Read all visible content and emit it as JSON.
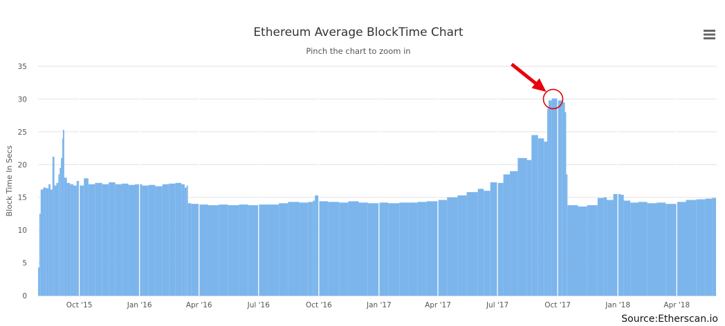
{
  "chart_data": {
    "type": "bar",
    "title": "Ethereum Average BlockTime Chart",
    "subtitle": "Pinch the chart to zoom in",
    "ylabel": "Block Time In Secs",
    "xlabel": "",
    "ylim": [
      0,
      35
    ],
    "yticks": [
      0,
      5,
      10,
      15,
      20,
      25,
      30,
      35
    ],
    "xlim": [
      "2015-07-30",
      "2018-06-01"
    ],
    "xticks": [
      {
        "date": "2015-10-01",
        "label": "Oct '15"
      },
      {
        "date": "2016-01-01",
        "label": "Jan '16"
      },
      {
        "date": "2016-04-01",
        "label": "Apr '16"
      },
      {
        "date": "2016-07-01",
        "label": "Jul '16"
      },
      {
        "date": "2016-10-01",
        "label": "Oct '16"
      },
      {
        "date": "2017-01-01",
        "label": "Jan '17"
      },
      {
        "date": "2017-04-01",
        "label": "Apr '17"
      },
      {
        "date": "2017-07-01",
        "label": "Jul '17"
      },
      {
        "date": "2017-10-01",
        "label": "Oct '17"
      },
      {
        "date": "2018-01-01",
        "label": "Jan '18"
      },
      {
        "date": "2018-04-01",
        "label": "Apr '18"
      }
    ],
    "grid": true,
    "legend": "none",
    "bar_color": "#7cb5ec",
    "series": [
      {
        "values": [
          [
            "2015-07-30",
            4.3
          ],
          [
            "2015-08-01",
            12.5
          ],
          [
            "2015-08-03",
            16.2
          ],
          [
            "2015-08-07",
            16.5
          ],
          [
            "2015-08-11",
            16.4
          ],
          [
            "2015-08-15",
            17.0
          ],
          [
            "2015-08-18",
            16.2
          ],
          [
            "2015-08-21",
            21.2
          ],
          [
            "2015-08-24",
            16.8
          ],
          [
            "2015-08-27",
            17.2
          ],
          [
            "2015-08-30",
            18.5
          ],
          [
            "2015-09-01",
            19.5
          ],
          [
            "2015-09-03",
            21.0
          ],
          [
            "2015-09-05",
            24.0
          ],
          [
            "2015-09-06",
            25.3
          ],
          [
            "2015-09-08",
            18.0
          ],
          [
            "2015-09-12",
            17.2
          ],
          [
            "2015-09-17",
            17.0
          ],
          [
            "2015-09-22",
            16.8
          ],
          [
            "2015-09-27",
            17.5
          ],
          [
            "2015-10-02",
            16.8
          ],
          [
            "2015-10-08",
            17.9
          ],
          [
            "2015-10-15",
            17.0
          ],
          [
            "2015-10-25",
            17.2
          ],
          [
            "2015-11-05",
            17.0
          ],
          [
            "2015-11-15",
            17.3
          ],
          [
            "2015-11-25",
            17.0
          ],
          [
            "2015-12-05",
            17.1
          ],
          [
            "2015-12-15",
            16.9
          ],
          [
            "2015-12-25",
            17.0
          ],
          [
            "2016-01-05",
            16.8
          ],
          [
            "2016-01-15",
            16.9
          ],
          [
            "2016-01-25",
            16.7
          ],
          [
            "2016-02-05",
            17.0
          ],
          [
            "2016-02-15",
            17.1
          ],
          [
            "2016-02-25",
            17.2
          ],
          [
            "2016-03-05",
            17.0
          ],
          [
            "2016-03-10",
            16.5
          ],
          [
            "2016-03-13",
            16.8
          ],
          [
            "2016-03-15",
            14.1
          ],
          [
            "2016-03-20",
            14.0
          ],
          [
            "2016-04-01",
            13.9
          ],
          [
            "2016-04-15",
            13.8
          ],
          [
            "2016-05-01",
            13.9
          ],
          [
            "2016-05-15",
            13.8
          ],
          [
            "2016-06-01",
            13.9
          ],
          [
            "2016-06-15",
            13.8
          ],
          [
            "2016-07-01",
            13.9
          ],
          [
            "2016-07-15",
            13.9
          ],
          [
            "2016-08-01",
            14.1
          ],
          [
            "2016-08-15",
            14.3
          ],
          [
            "2016-09-01",
            14.2
          ],
          [
            "2016-09-15",
            14.3
          ],
          [
            "2016-09-22",
            14.5
          ],
          [
            "2016-09-25",
            15.3
          ],
          [
            "2016-10-01",
            14.4
          ],
          [
            "2016-10-15",
            14.3
          ],
          [
            "2016-11-01",
            14.2
          ],
          [
            "2016-11-15",
            14.4
          ],
          [
            "2016-12-01",
            14.2
          ],
          [
            "2016-12-15",
            14.1
          ],
          [
            "2017-01-01",
            14.2
          ],
          [
            "2017-01-15",
            14.1
          ],
          [
            "2017-02-01",
            14.2
          ],
          [
            "2017-02-15",
            14.2
          ],
          [
            "2017-03-01",
            14.3
          ],
          [
            "2017-03-15",
            14.4
          ],
          [
            "2017-04-01",
            14.6
          ],
          [
            "2017-04-15",
            15.0
          ],
          [
            "2017-05-01",
            15.3
          ],
          [
            "2017-05-15",
            15.8
          ],
          [
            "2017-06-01",
            16.3
          ],
          [
            "2017-06-10",
            16.0
          ],
          [
            "2017-06-20",
            17.3
          ],
          [
            "2017-07-01",
            17.2
          ],
          [
            "2017-07-10",
            18.5
          ],
          [
            "2017-07-20",
            19.0
          ],
          [
            "2017-08-01",
            21.0
          ],
          [
            "2017-08-15",
            20.7
          ],
          [
            "2017-08-22",
            24.5
          ],
          [
            "2017-09-01",
            24.0
          ],
          [
            "2017-09-10",
            23.5
          ],
          [
            "2017-09-15",
            28.5
          ],
          [
            "2017-09-17",
            29.8
          ],
          [
            "2017-09-22",
            30.1
          ],
          [
            "2017-10-01",
            29.8
          ],
          [
            "2017-10-08",
            29.5
          ],
          [
            "2017-10-12",
            28.0
          ],
          [
            "2017-10-14",
            18.5
          ],
          [
            "2017-10-16",
            13.8
          ],
          [
            "2017-11-01",
            13.6
          ],
          [
            "2017-11-15",
            13.8
          ],
          [
            "2017-12-01",
            14.9
          ],
          [
            "2017-12-10",
            15.0
          ],
          [
            "2017-12-15",
            14.6
          ],
          [
            "2017-12-25",
            15.5
          ],
          [
            "2018-01-05",
            15.4
          ],
          [
            "2018-01-10",
            14.5
          ],
          [
            "2018-01-20",
            14.2
          ],
          [
            "2018-02-01",
            14.3
          ],
          [
            "2018-02-15",
            14.1
          ],
          [
            "2018-03-01",
            14.2
          ],
          [
            "2018-03-15",
            14.0
          ],
          [
            "2018-04-01",
            14.3
          ],
          [
            "2018-04-15",
            14.6
          ],
          [
            "2018-05-01",
            14.7
          ],
          [
            "2018-05-15",
            14.8
          ],
          [
            "2018-05-25",
            14.9
          ]
        ]
      }
    ],
    "annotations": [
      {
        "type": "circle",
        "date": "2017-09-24",
        "value": 30.0,
        "color": "#e00000"
      },
      {
        "type": "arrow",
        "color": "#e8000b",
        "points_to": {
          "date": "2017-09-21",
          "value": 31.0
        }
      }
    ]
  },
  "menu": {
    "icon": "hamburger-menu-icon"
  },
  "source_text": "Source:Etherscan.io"
}
